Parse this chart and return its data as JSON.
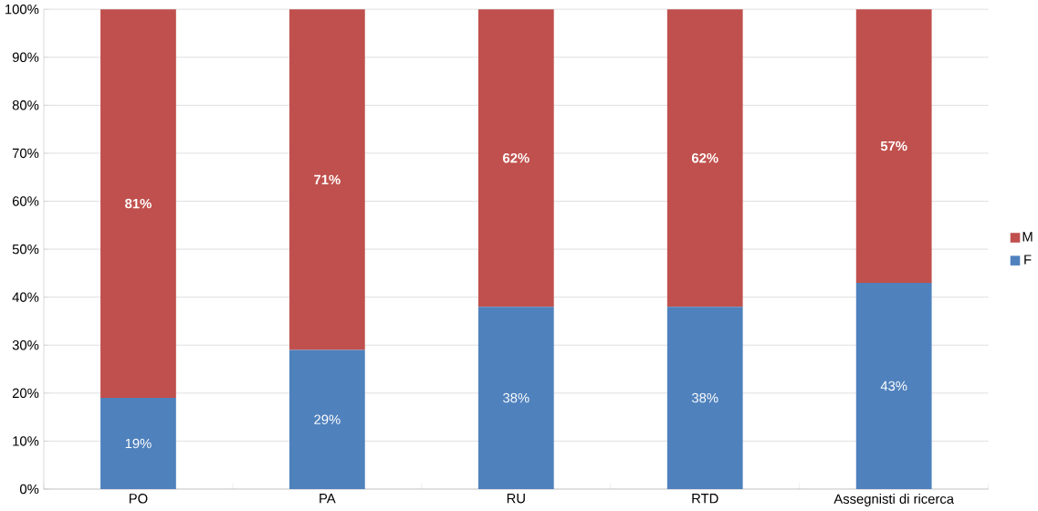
{
  "chart_data": {
    "type": "bar",
    "stacked": true,
    "categories": [
      "PO",
      "PA",
      "RU",
      "RTD",
      "Assegnisti di ricerca"
    ],
    "series": [
      {
        "name": "F",
        "color": "#4f81bd",
        "values": [
          19,
          29,
          38,
          38,
          43
        ],
        "value_labels": [
          "19%",
          "29%",
          "38%",
          "38%",
          "43%"
        ]
      },
      {
        "name": "M",
        "color": "#c0504d",
        "values": [
          81,
          71,
          62,
          62,
          57
        ],
        "value_labels": [
          "81%",
          "71%",
          "62%",
          "62%",
          "57%"
        ]
      }
    ],
    "ylim": [
      0,
      100
    ],
    "yticks": [
      {
        "value": 0,
        "label": "0%"
      },
      {
        "value": 10,
        "label": "10%"
      },
      {
        "value": 20,
        "label": "20%"
      },
      {
        "value": 30,
        "label": "30%"
      },
      {
        "value": 40,
        "label": "40%"
      },
      {
        "value": 50,
        "label": "50%"
      },
      {
        "value": 60,
        "label": "60%"
      },
      {
        "value": 70,
        "label": "70%"
      },
      {
        "value": 80,
        "label": "80%"
      },
      {
        "value": 90,
        "label": "90%"
      },
      {
        "value": 100,
        "label": "100%"
      }
    ],
    "grid": "y",
    "legend": "right"
  }
}
